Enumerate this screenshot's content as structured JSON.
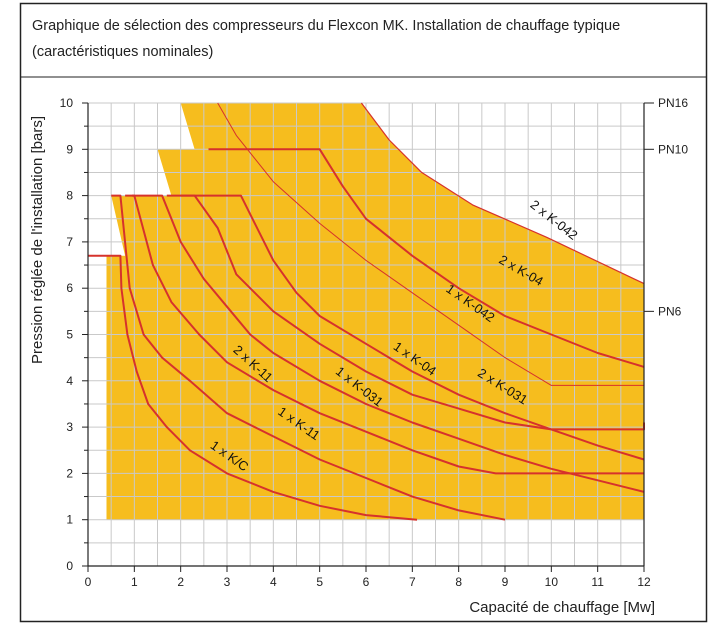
{
  "chart_data": {
    "type": "line",
    "title": "Graphique de sélection des compresseurs du Flexcon MK. Installation de chauffage typique (caractéristiques nominales)",
    "title_lines": [
      "Graphique de sélection des compresseurs du Flexcon MK. Installation de chauffage typique",
      "(caractéristiques nominales)"
    ],
    "xlabel": "Capacité de chauffage [Mw]",
    "ylabel": "Pression réglée de l'installation [bars]",
    "xlim": [
      0,
      12
    ],
    "ylim": [
      0,
      10
    ],
    "x_ticks": [
      "0",
      "1",
      "2",
      "3",
      "4",
      "5",
      "6",
      "7",
      "8",
      "9",
      "10",
      "11",
      "12"
    ],
    "y_ticks": [
      "0",
      "1",
      "2",
      "3",
      "4",
      "5",
      "6",
      "7",
      "8",
      "9",
      "10"
    ],
    "grid": true,
    "pressure_classes": [
      {
        "label": "PN16",
        "y": 10
      },
      {
        "label": "PN10",
        "y": 9
      },
      {
        "label": "PN6",
        "y": 5.5
      }
    ],
    "colors": {
      "fill": "#f6bd1e",
      "fill_light": "#fadb78",
      "curve": "#d6322c",
      "grid": "#c9c9c9"
    },
    "regions": [
      {
        "points": [
          [
            0.4,
            1
          ],
          [
            12,
            1
          ],
          [
            12,
            6.1
          ],
          [
            9.9,
            7.1
          ],
          [
            8.3,
            7.8
          ],
          [
            7.2,
            8.5
          ],
          [
            6.5,
            9.2
          ],
          [
            5.9,
            10
          ],
          [
            2.0,
            10
          ],
          [
            2.3,
            9
          ],
          [
            1.5,
            9
          ],
          [
            1.8,
            8
          ],
          [
            0.5,
            8
          ],
          [
            0.8,
            6.7
          ],
          [
            0.4,
            6.7
          ]
        ]
      }
    ],
    "series": [
      {
        "label": "1 x K/C",
        "label_at": [
          3.0,
          2.3
        ],
        "label_angle": 35,
        "points": [
          [
            0,
            6.7
          ],
          [
            0.7,
            6.7
          ],
          [
            0.72,
            6
          ],
          [
            0.85,
            5
          ],
          [
            1.05,
            4.2
          ],
          [
            1.3,
            3.5
          ],
          [
            1.7,
            3
          ],
          [
            2.2,
            2.5
          ],
          [
            3,
            2
          ],
          [
            4,
            1.6
          ],
          [
            5,
            1.3
          ],
          [
            6,
            1.1
          ],
          [
            7.1,
            1
          ]
        ]
      },
      {
        "label": "1 x K-11",
        "label_at": [
          4.5,
          3.0
        ],
        "label_angle": 35,
        "points": [
          [
            0.5,
            8
          ],
          [
            0.7,
            8
          ],
          [
            0.9,
            6
          ],
          [
            1.2,
            5
          ],
          [
            1.6,
            4.5
          ],
          [
            2.2,
            4
          ],
          [
            3,
            3.3
          ],
          [
            4,
            2.8
          ],
          [
            5,
            2.3
          ],
          [
            6,
            1.9
          ],
          [
            7,
            1.5
          ],
          [
            8,
            1.2
          ],
          [
            9,
            1
          ]
        ]
      },
      {
        "label": "2 x K-11",
        "label_at": [
          3.5,
          4.3
        ],
        "label_angle": 42,
        "points": [
          [
            0.8,
            8
          ],
          [
            1.0,
            8
          ],
          [
            1.4,
            6.5
          ],
          [
            1.8,
            5.7
          ],
          [
            2.4,
            5
          ],
          [
            3,
            4.4
          ],
          [
            4,
            3.8
          ],
          [
            5,
            3.3
          ],
          [
            6,
            2.9
          ],
          [
            7,
            2.5
          ],
          [
            8,
            2.15
          ],
          [
            8.8,
            2
          ],
          [
            12,
            2
          ]
        ]
      },
      {
        "label": "1 x K-031",
        "label_at": [
          5.8,
          3.8
        ],
        "label_angle": 38,
        "points": [
          [
            0.95,
            8
          ],
          [
            1.6,
            8
          ],
          [
            2,
            7
          ],
          [
            2.5,
            6.2
          ],
          [
            3,
            5.6
          ],
          [
            3.5,
            5
          ],
          [
            4,
            4.6
          ],
          [
            5,
            4
          ],
          [
            6,
            3.5
          ],
          [
            7,
            3.1
          ],
          [
            8,
            2.75
          ],
          [
            9,
            2.4
          ],
          [
            10,
            2.1
          ],
          [
            11,
            1.85
          ],
          [
            12,
            1.6
          ]
        ]
      },
      {
        "label": "1 x K-04",
        "label_at": [
          7.0,
          4.4
        ],
        "label_angle": 35,
        "points": [
          [
            2,
            8
          ],
          [
            3.3,
            8
          ],
          [
            3.6,
            7.4
          ],
          [
            4,
            6.6
          ],
          [
            4.5,
            5.9
          ],
          [
            5,
            5.4
          ],
          [
            6,
            4.8
          ],
          [
            7,
            4.2
          ],
          [
            8,
            3.7
          ],
          [
            9,
            3.3
          ],
          [
            10,
            2.95
          ],
          [
            11,
            2.6
          ],
          [
            12,
            2.3
          ]
        ]
      },
      {
        "label": "2 x K-031",
        "label_at": [
          8.9,
          3.8
        ],
        "label_angle": 32,
        "points": [
          [
            1.7,
            8
          ],
          [
            2.3,
            8
          ],
          [
            2.8,
            7.3
          ],
          [
            3.2,
            6.3
          ],
          [
            4,
            5.5
          ],
          [
            5,
            4.8
          ],
          [
            6,
            4.2
          ],
          [
            7,
            3.7
          ],
          [
            8,
            3.4
          ],
          [
            9,
            3.1
          ],
          [
            10,
            2.95
          ],
          [
            12,
            2.95
          ],
          [
            12,
            3.1
          ]
        ]
      },
      {
        "label": "1 x K-042",
        "label_at": [
          8.2,
          5.6
        ],
        "label_angle": 35,
        "points": [
          [
            2.8,
            10
          ],
          [
            3.2,
            9.3
          ],
          [
            4,
            8.3
          ],
          [
            5,
            7.4
          ],
          [
            6,
            6.6
          ],
          [
            7,
            5.9
          ],
          [
            8,
            5.2
          ],
          [
            9,
            4.5
          ],
          [
            10,
            3.9
          ],
          [
            12,
            3.9
          ]
        ],
        "style": "thin"
      },
      {
        "label": "2 x K-04",
        "label_at": [
          9.3,
          6.3
        ],
        "label_angle": 30,
        "points": [
          [
            2.6,
            9
          ],
          [
            5,
            9
          ],
          [
            5.5,
            8.2
          ],
          [
            6,
            7.5
          ],
          [
            7,
            6.7
          ],
          [
            8,
            6
          ],
          [
            9,
            5.4
          ],
          [
            10,
            5
          ],
          [
            11,
            4.6
          ],
          [
            12,
            4.3
          ]
        ]
      },
      {
        "label": "2 x K-042",
        "label_at": [
          10.0,
          7.4
        ],
        "label_angle": 38,
        "points": [
          [
            5.9,
            10
          ],
          [
            6.5,
            9.2
          ],
          [
            7.2,
            8.5
          ],
          [
            8.3,
            7.8
          ],
          [
            9.9,
            7.1
          ],
          [
            12,
            6.1
          ]
        ],
        "style": "edge"
      }
    ]
  }
}
